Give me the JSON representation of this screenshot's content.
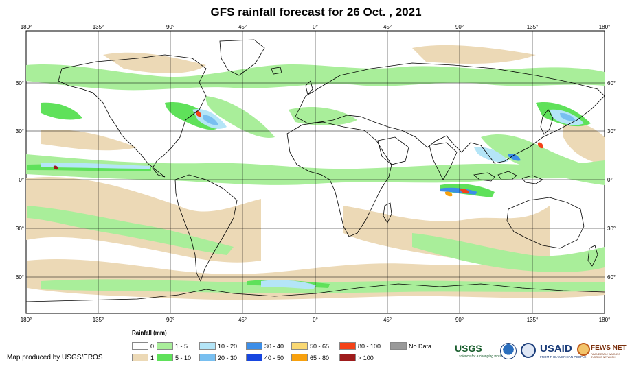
{
  "title": "GFS rainfall forecast for 26 Oct. , 2021",
  "map": {
    "longitude_labels": [
      "180°",
      "135°",
      "90°",
      "45°",
      "0°",
      "45°",
      "90°",
      "135°",
      "180°"
    ],
    "latitude_labels": [
      "60°",
      "30°",
      "0°",
      "30°",
      "60°"
    ],
    "colors": {
      "ocean_background": "#ffffff",
      "graticule": "#000000",
      "coastline": "#000000"
    }
  },
  "legend": {
    "title": "Rainfall (mm)",
    "classes": [
      {
        "label": "0",
        "color": "#ffffff"
      },
      {
        "label": "1",
        "color": "#ecd9b6"
      },
      {
        "label": "1 - 5",
        "color": "#a9ee9a"
      },
      {
        "label": "5 - 10",
        "color": "#5fe15a"
      },
      {
        "label": "10 - 20",
        "color": "#b4e5f7"
      },
      {
        "label": "20 - 30",
        "color": "#78bff0"
      },
      {
        "label": "30 - 40",
        "color": "#3c8ee8"
      },
      {
        "label": "40 - 50",
        "color": "#1746e0"
      },
      {
        "label": "50 - 65",
        "color": "#f9d873"
      },
      {
        "label": "65 - 80",
        "color": "#f8a10e"
      },
      {
        "label": "80 - 100",
        "color": "#f44218"
      },
      {
        "label": "> 100",
        "color": "#9e1b1b"
      },
      {
        "label": "No Data",
        "color": "#999999"
      }
    ]
  },
  "credit": "Map produced by USGS/EROS",
  "logos": {
    "usgs": "USGS",
    "usgs_tag": "science for a changing world",
    "noaa": "noaa-logo",
    "dos": "state-dept-seal",
    "usaid": "USAID",
    "usaid_tag": "FROM THE AMERICAN PEOPLE",
    "fews": "FEWS NET",
    "fews_tag": "FAMINE EARLY WARNING SYSTEMS NETWORK"
  }
}
